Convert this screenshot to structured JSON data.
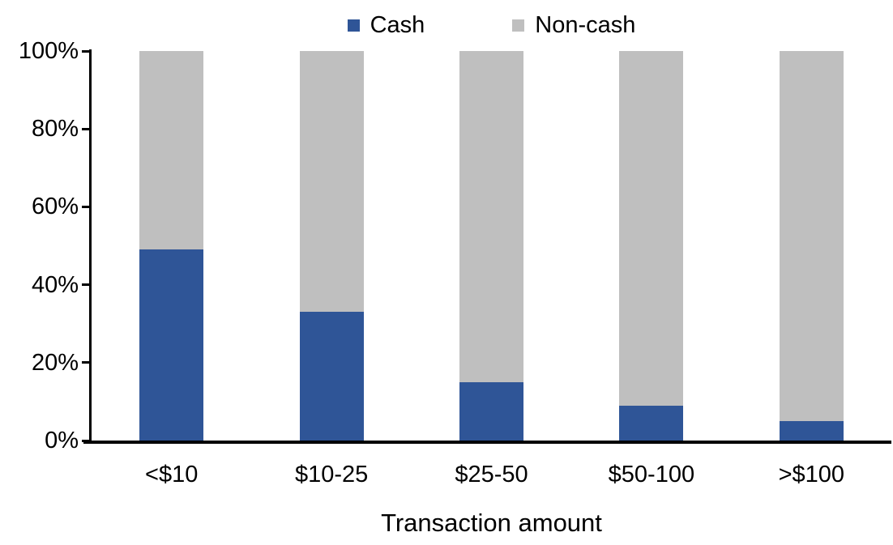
{
  "chart_data": {
    "type": "bar",
    "stacked": true,
    "title": "",
    "xlabel": "Transaction amount",
    "ylabel": "",
    "categories": [
      "<$10",
      "$10-25",
      "$25-50",
      "$50-100",
      ">$100"
    ],
    "series": [
      {
        "name": "Cash",
        "color": "#2F5597",
        "values": [
          49,
          33,
          15,
          9,
          5
        ]
      },
      {
        "name": "Non-cash",
        "color": "#BFBFBF",
        "values": [
          51,
          67,
          85,
          91,
          95
        ]
      }
    ],
    "ylim": [
      0,
      100
    ],
    "yticks": [
      0,
      20,
      40,
      60,
      80,
      100
    ],
    "ytick_labels": [
      "0%",
      "20%",
      "40%",
      "60%",
      "80%",
      "100%"
    ],
    "legend_position": "top",
    "grid": false,
    "axis_color": "#000000"
  }
}
